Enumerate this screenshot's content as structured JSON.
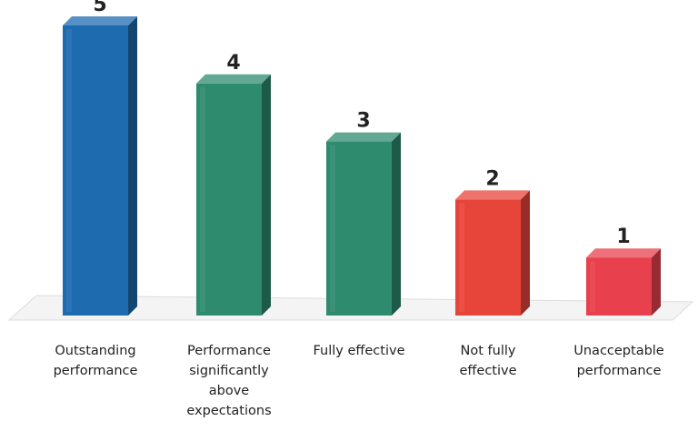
{
  "chart_data": {
    "type": "bar",
    "title": "",
    "xlabel": "",
    "ylabel": "",
    "ylim": [
      0,
      5
    ],
    "grid": false,
    "legend": "none",
    "style": "3d",
    "categories": [
      [
        "Outstanding",
        "performance"
      ],
      [
        "Performance",
        "significantly",
        "above",
        "expectations"
      ],
      [
        "Fully effective"
      ],
      [
        "Not fully",
        "effective"
      ],
      [
        "Unacceptable",
        "performance"
      ]
    ],
    "values": [
      5,
      4,
      3,
      2,
      1
    ],
    "data_labels": [
      "5",
      "4",
      "3",
      "2",
      "1"
    ],
    "colors": [
      "#1f6bb0",
      "#2e8b6e",
      "#2e8b6e",
      "#e8453a",
      "#e8404d"
    ]
  }
}
